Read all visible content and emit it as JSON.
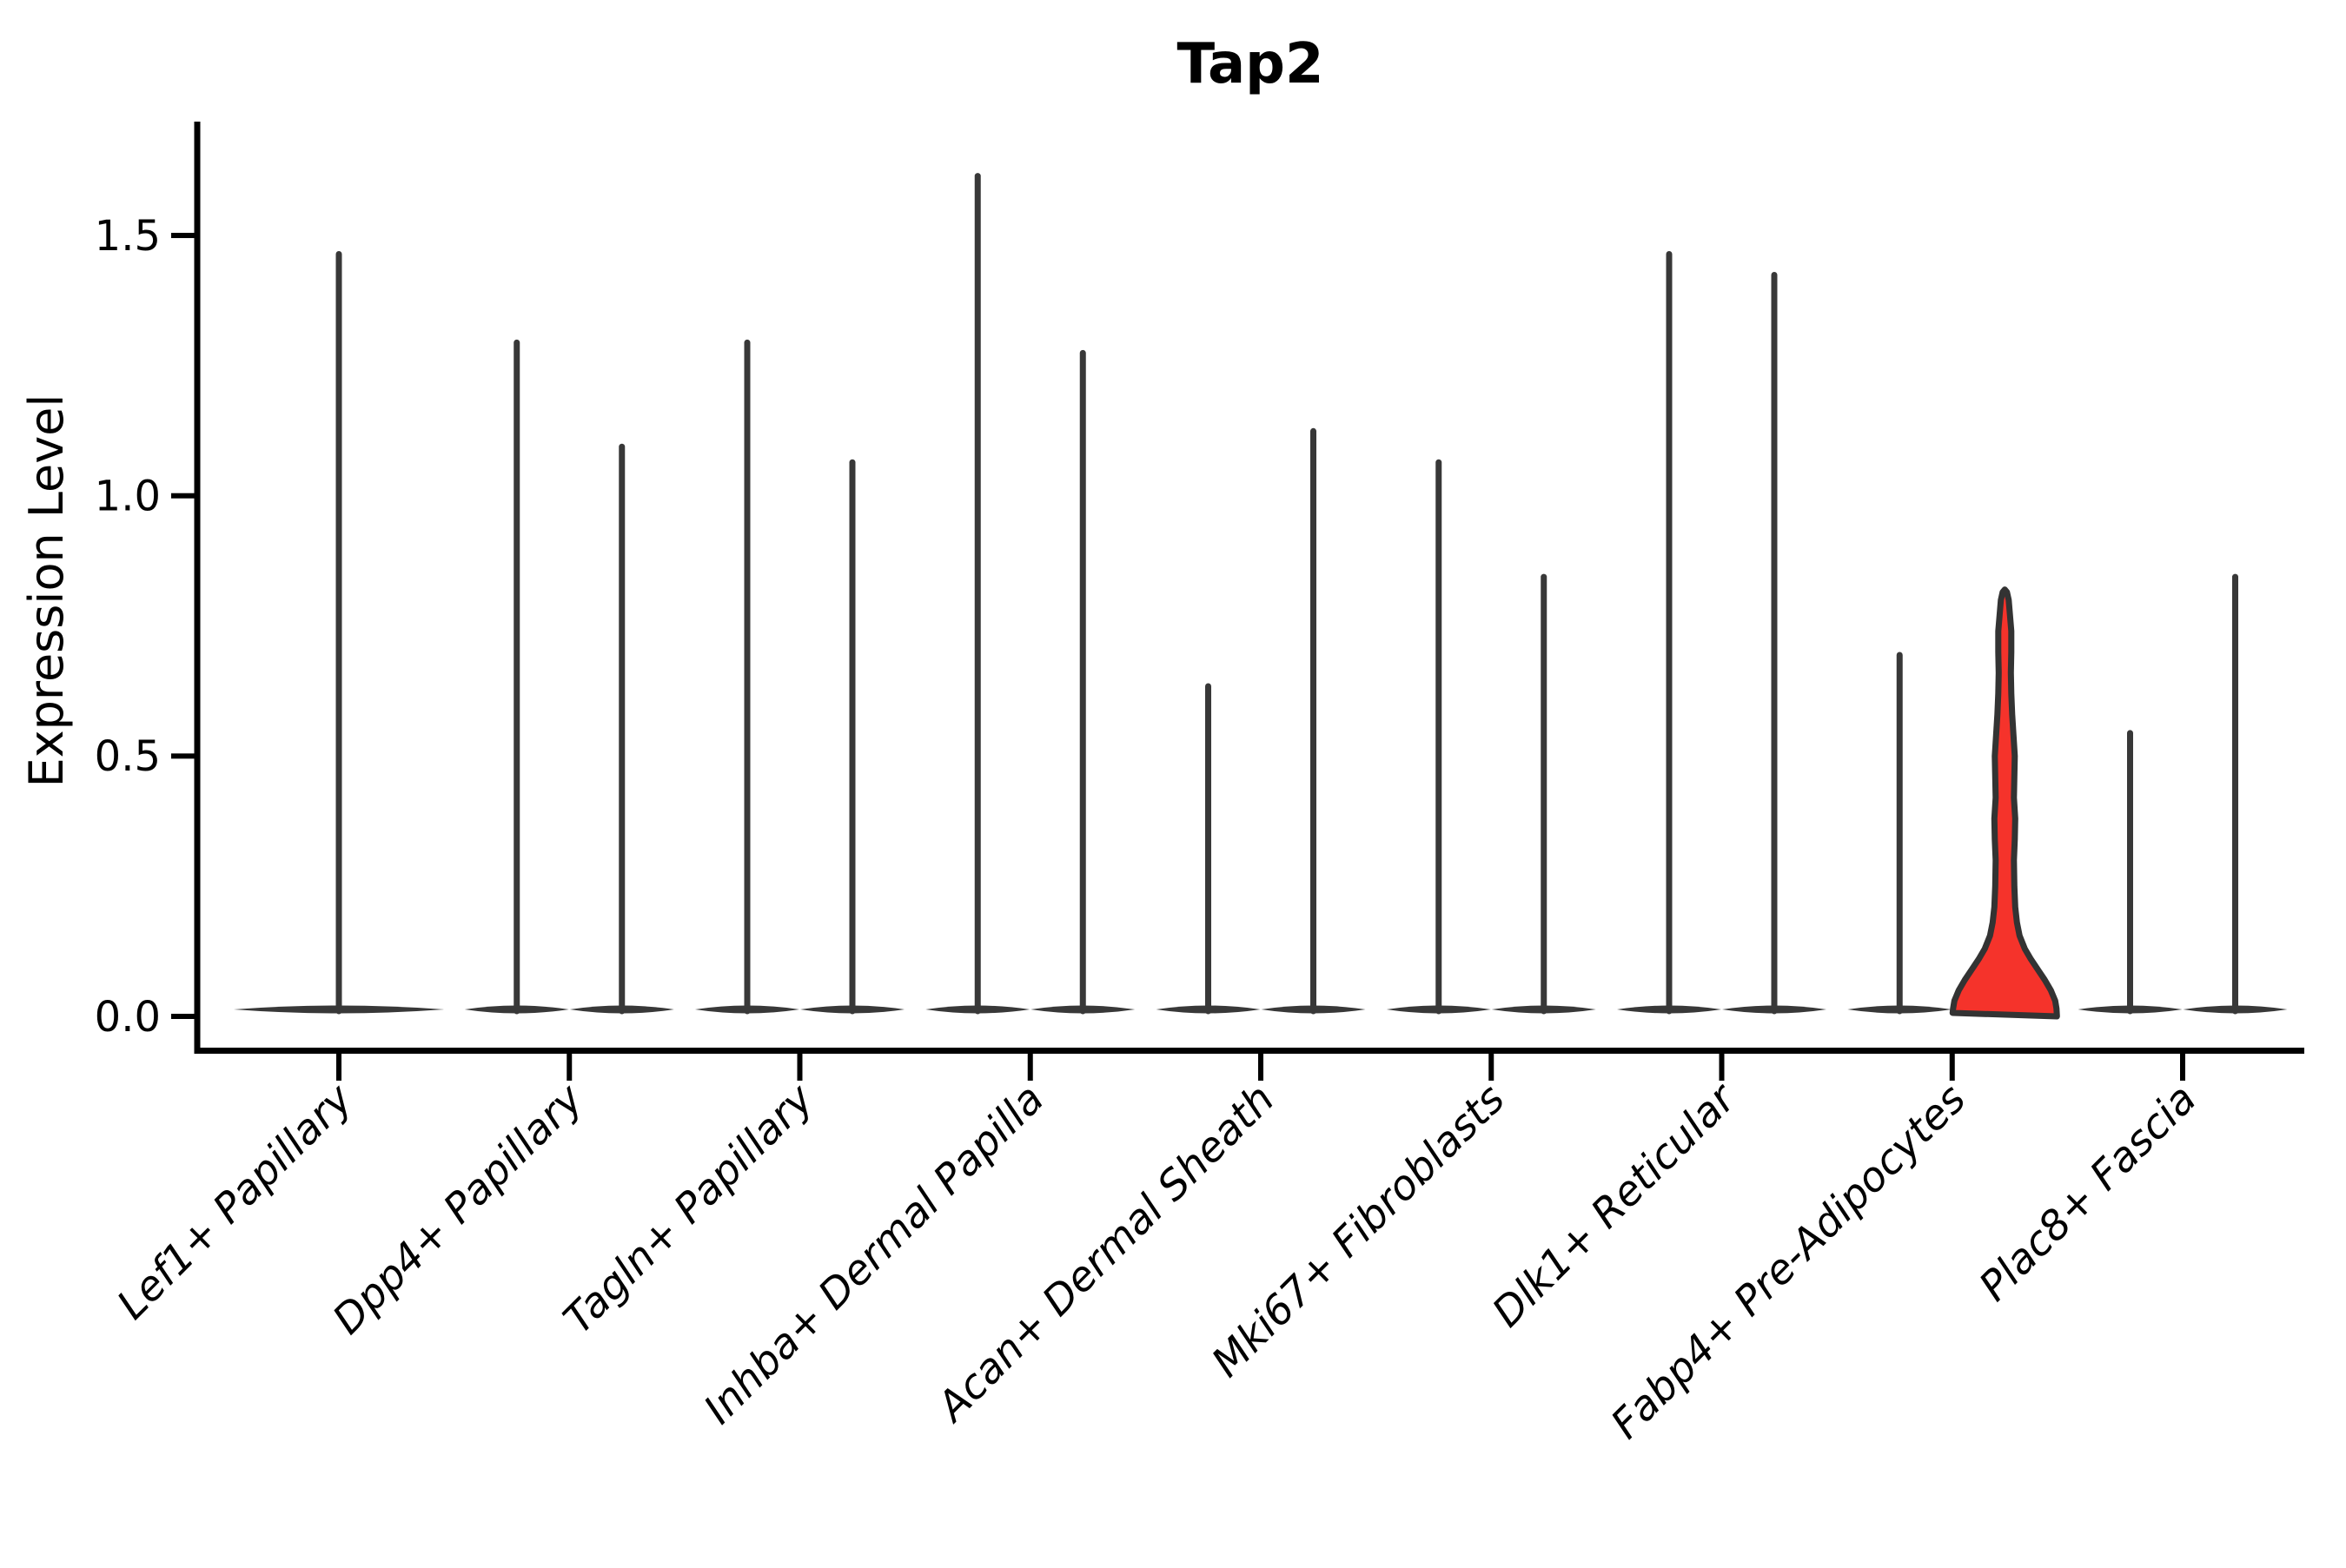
{
  "title": "Tap2",
  "colors": {
    "ink": "#383838",
    "spine": "#000000",
    "background": "#ffffff",
    "highlight_fill": "#f5332b",
    "highlight_stroke": "#333333"
  },
  "chart_data": {
    "type": "violin",
    "title": "Tap2",
    "xlabel": "",
    "ylabel": "Expression Level",
    "ylim": [
      -0.08,
      1.72
    ],
    "yticks": [
      0.0,
      0.5,
      1.0,
      1.5
    ],
    "yticklabels": [
      "0.0",
      "0.5",
      "1.0",
      "1.5"
    ],
    "grid": false,
    "legend": "none",
    "x_tick_label_rotation_deg": 45,
    "x_tick_label_style": "italic",
    "categories": [
      "Lef1+ Papillary",
      "Dpp4+ Papillary",
      "Tagln+ Papillary",
      "Inhba+ Dermal Papilla",
      "Acan+ Dermal Sheath",
      "Mki67+ Fibroblasts",
      "Dlk1+ Reticular",
      "Fabp4+ Pre-Adipocytes",
      "Plac8+ Fascia"
    ],
    "series": [
      {
        "category": "Lef1+ Papillary",
        "violins": [
          {
            "group": 1,
            "max": 1.47,
            "highlighted": false
          }
        ]
      },
      {
        "category": "Dpp4+ Papillary",
        "violins": [
          {
            "group": 1,
            "max": 1.3,
            "highlighted": false
          },
          {
            "group": 2,
            "max": 1.1,
            "highlighted": false
          }
        ]
      },
      {
        "category": "Tagln+ Papillary",
        "violins": [
          {
            "group": 1,
            "max": 1.3,
            "highlighted": false
          },
          {
            "group": 2,
            "max": 1.07,
            "highlighted": false
          }
        ]
      },
      {
        "category": "Inhba+ Dermal Papilla",
        "violins": [
          {
            "group": 1,
            "max": 1.62,
            "highlighted": false
          },
          {
            "group": 2,
            "max": 1.28,
            "highlighted": false
          }
        ]
      },
      {
        "category": "Acan+ Dermal Sheath",
        "violins": [
          {
            "group": 1,
            "max": 0.64,
            "highlighted": false
          },
          {
            "group": 2,
            "max": 1.13,
            "highlighted": false
          }
        ]
      },
      {
        "category": "Mki67+ Fibroblasts",
        "violins": [
          {
            "group": 1,
            "max": 1.07,
            "highlighted": false
          },
          {
            "group": 2,
            "max": 0.85,
            "highlighted": false
          }
        ]
      },
      {
        "category": "Dlk1+ Reticular",
        "violins": [
          {
            "group": 1,
            "max": 1.47,
            "highlighted": false
          },
          {
            "group": 2,
            "max": 1.43,
            "highlighted": false
          }
        ]
      },
      {
        "category": "Fabp4+ Pre-Adipocytes",
        "violins": [
          {
            "group": 1,
            "max": 0.7,
            "highlighted": false
          },
          {
            "group": 2,
            "max": 0.82,
            "highlighted": true
          }
        ]
      },
      {
        "category": "Plac8+ Fascia",
        "violins": [
          {
            "group": 1,
            "max": 0.55,
            "highlighted": false
          },
          {
            "group": 2,
            "max": 0.85,
            "highlighted": false
          }
        ]
      }
    ],
    "highlight_violin": {
      "category": "Fabp4+ Pre-Adipocytes",
      "group": 2,
      "max": 0.82,
      "profile_v_halfwidth": [
        [
          0.0,
          60.0
        ],
        [
          0.015,
          59.5
        ],
        [
          0.03,
          58.0
        ],
        [
          0.05,
          53.0
        ],
        [
          0.07,
          46.0
        ],
        [
          0.09,
          38.0
        ],
        [
          0.11,
          30.0
        ],
        [
          0.13,
          23.0
        ],
        [
          0.155,
          17.0
        ],
        [
          0.18,
          14.0
        ],
        [
          0.21,
          12.0
        ],
        [
          0.25,
          11.0
        ],
        [
          0.3,
          10.5
        ],
        [
          0.34,
          11.5
        ],
        [
          0.38,
          12.0
        ],
        [
          0.42,
          10.5
        ],
        [
          0.46,
          11.0
        ],
        [
          0.5,
          11.5
        ],
        [
          0.54,
          10.0
        ],
        [
          0.58,
          8.5
        ],
        [
          0.62,
          7.5
        ],
        [
          0.66,
          7.0
        ],
        [
          0.7,
          7.5
        ],
        [
          0.74,
          7.5
        ],
        [
          0.77,
          6.0
        ],
        [
          0.8,
          4.5
        ],
        [
          0.815,
          2.5
        ],
        [
          0.82,
          0.0
        ]
      ]
    }
  }
}
